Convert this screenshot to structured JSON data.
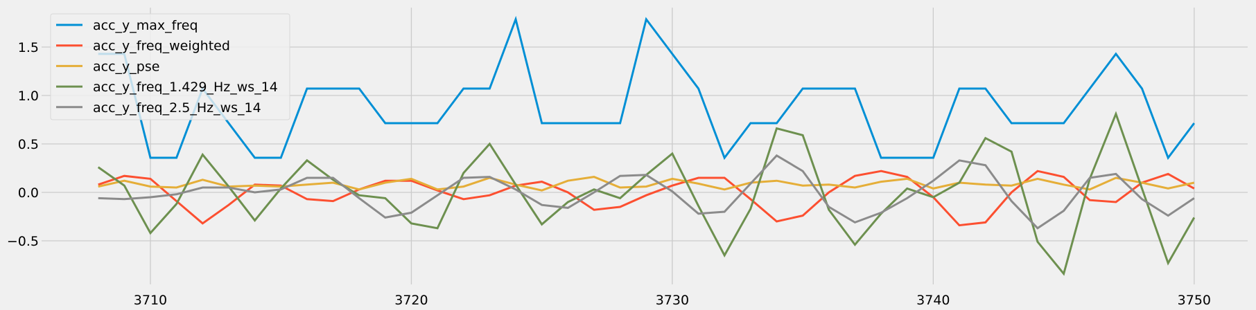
{
  "chart_data": {
    "type": "line",
    "title": "",
    "xlabel": "",
    "ylabel": "",
    "xlim": [
      3705.83,
      3752.05
    ],
    "ylim": [
      -0.95,
      1.907
    ],
    "grid": true,
    "legend_position": "top-left",
    "x_ticks": [
      3710,
      3720,
      3730,
      3740,
      3750
    ],
    "y_ticks": [
      -0.5,
      0.0,
      0.5,
      1.0,
      1.5
    ],
    "x_tick_labels": [
      "3710",
      "3720",
      "3730",
      "3740",
      "3750"
    ],
    "y_tick_labels": [
      "−0.5",
      "0.0",
      "0.5",
      "1.0",
      "1.5"
    ],
    "x": [
      3708,
      3709,
      3710,
      3711,
      3712,
      3713,
      3714,
      3715,
      3716,
      3717,
      3718,
      3719,
      3720,
      3721,
      3722,
      3723,
      3724,
      3725,
      3726,
      3727,
      3728,
      3729,
      3730,
      3731,
      3732,
      3733,
      3734,
      3735,
      3736,
      3737,
      3738,
      3739,
      3740,
      3741,
      3742,
      3743,
      3744,
      3745,
      3746,
      3747,
      3748,
      3749,
      3750
    ],
    "series": [
      {
        "name": "acc_y_max_freq",
        "color": "#008fd5",
        "values": [
          1.429,
          1.429,
          0.357,
          0.357,
          1.071,
          0.714,
          0.357,
          0.357,
          1.071,
          1.071,
          1.071,
          0.714,
          0.714,
          0.714,
          1.071,
          1.071,
          1.786,
          0.714,
          0.714,
          0.714,
          0.714,
          1.786,
          1.429,
          1.071,
          0.357,
          0.714,
          0.714,
          1.071,
          1.071,
          1.071,
          0.357,
          0.357,
          0.357,
          1.071,
          1.071,
          0.714,
          0.714,
          0.714,
          1.071,
          1.429,
          1.071,
          0.357,
          0.714
        ]
      },
      {
        "name": "acc_y_freq_weighted",
        "color": "#fc4f30",
        "values": [
          0.08,
          0.17,
          0.14,
          -0.09,
          -0.32,
          -0.13,
          0.08,
          0.07,
          -0.07,
          -0.09,
          0.03,
          0.12,
          0.12,
          0.02,
          -0.07,
          -0.03,
          0.07,
          0.11,
          0.0,
          -0.18,
          -0.15,
          -0.03,
          0.07,
          0.15,
          0.15,
          -0.07,
          -0.3,
          -0.24,
          0.0,
          0.17,
          0.22,
          0.16,
          -0.05,
          -0.34,
          -0.31,
          0.0,
          0.22,
          0.16,
          -0.08,
          -0.1,
          0.1,
          0.19,
          0.04
        ]
      },
      {
        "name": "acc_y_pse",
        "color": "#e5ae38",
        "values": [
          0.06,
          0.12,
          0.06,
          0.05,
          0.13,
          0.06,
          0.07,
          0.06,
          0.08,
          0.1,
          0.03,
          0.1,
          0.14,
          0.03,
          0.06,
          0.15,
          0.08,
          0.02,
          0.12,
          0.16,
          0.05,
          0.06,
          0.14,
          0.09,
          0.03,
          0.1,
          0.12,
          0.07,
          0.08,
          0.05,
          0.11,
          0.14,
          0.04,
          0.1,
          0.08,
          0.07,
          0.14,
          0.08,
          0.03,
          0.15,
          0.1,
          0.04,
          0.1
        ]
      },
      {
        "name": "acc_y_freq_1.429_Hz_ws_14",
        "color": "#6d904f",
        "values": [
          0.26,
          0.07,
          -0.42,
          -0.12,
          0.39,
          0.06,
          -0.29,
          0.04,
          0.33,
          0.13,
          -0.03,
          -0.06,
          -0.32,
          -0.37,
          0.2,
          0.5,
          0.08,
          -0.33,
          -0.1,
          0.03,
          -0.06,
          0.18,
          0.4,
          -0.14,
          -0.65,
          -0.17,
          0.66,
          0.59,
          -0.18,
          -0.54,
          -0.22,
          0.04,
          -0.05,
          0.1,
          0.56,
          0.42,
          -0.51,
          -0.84,
          0.14,
          0.81,
          0.04,
          -0.73,
          -0.26
        ]
      },
      {
        "name": "acc_y_freq_2.5_Hz_ws_14",
        "color": "#8b8b8b",
        "values": [
          -0.06,
          -0.07,
          -0.05,
          -0.02,
          0.05,
          0.05,
          0.0,
          0.03,
          0.15,
          0.15,
          -0.06,
          -0.26,
          -0.21,
          -0.03,
          0.15,
          0.16,
          0.03,
          -0.13,
          -0.16,
          0.0,
          0.17,
          0.18,
          0.01,
          -0.22,
          -0.2,
          0.09,
          0.38,
          0.22,
          -0.15,
          -0.31,
          -0.21,
          -0.06,
          0.12,
          0.33,
          0.28,
          -0.09,
          -0.37,
          -0.19,
          0.15,
          0.19,
          -0.07,
          -0.24,
          -0.06
        ]
      }
    ]
  }
}
